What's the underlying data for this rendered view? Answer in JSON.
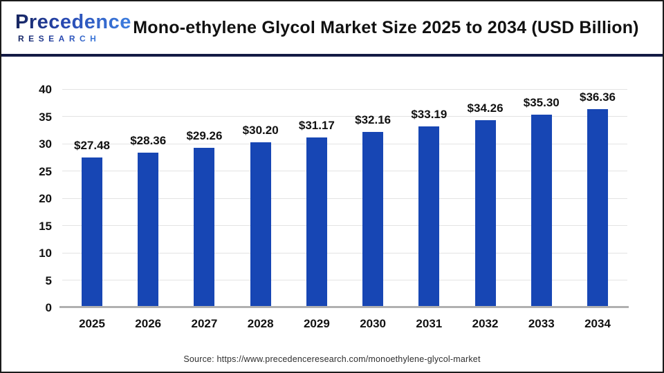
{
  "logo": {
    "name": "Precedence",
    "subtitle": "RESEARCH"
  },
  "header": {
    "title": "Mono-ethylene Glycol Market Size 2025 to 2034 (USD Billion)"
  },
  "chart_data": {
    "type": "bar",
    "title": "Mono-ethylene Glycol Market Size 2025 to 2034 (USD Billion)",
    "categories": [
      "2025",
      "2026",
      "2027",
      "2028",
      "2029",
      "2030",
      "2031",
      "2032",
      "2033",
      "2034"
    ],
    "values": [
      27.48,
      28.36,
      29.26,
      30.2,
      31.17,
      32.16,
      33.19,
      34.26,
      35.3,
      36.36
    ],
    "bar_labels": [
      "$27.48",
      "$28.36",
      "$29.26",
      "$30.20",
      "$31.17",
      "$32.16",
      "$33.19",
      "$34.26",
      "$35.30",
      "$36.36"
    ],
    "xlabel": "",
    "ylabel": "",
    "ylim": [
      0,
      40
    ],
    "yticks": [
      0,
      5,
      10,
      15,
      20,
      25,
      30,
      35,
      40
    ],
    "grid": true,
    "legend": "none",
    "bar_color": "#1746b4",
    "gridline_color": "#e3e3e3",
    "baseline_color": "#b0b0b0"
  },
  "source": {
    "text": "Source: https://www.precedenceresearch.com/monoethylene-glycol-market"
  },
  "colors": {
    "divider": "#131a44",
    "logo_dark": "#16245e",
    "logo_light": "#3e7fe0",
    "text": "#111111"
  }
}
